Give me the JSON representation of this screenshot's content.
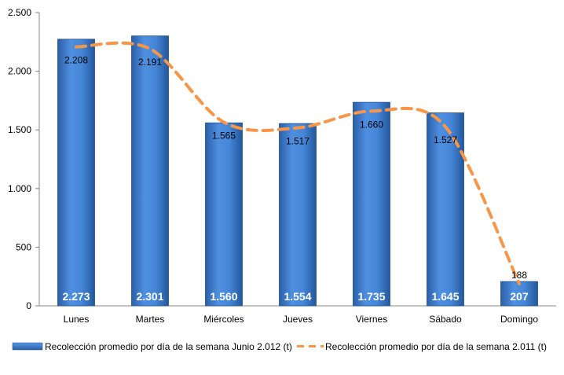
{
  "chart_data": {
    "type": "bar",
    "categories": [
      "Lunes",
      "Martes",
      "Miércoles",
      "Jueves",
      "Viernes",
      "Sábado",
      "Domingo"
    ],
    "ylim": [
      0,
      2500
    ],
    "yticks": [
      0,
      500,
      1000,
      1500,
      2000,
      2500
    ],
    "ytick_labels": [
      "0",
      "500",
      "1.000",
      "1.500",
      "2.000",
      "2.500"
    ],
    "grid": false,
    "legend_position": "bottom",
    "series": [
      {
        "name": "Recolección promedio por día de la semana Junio 2.012 (t)",
        "type": "bar",
        "color": "#3f7fd0",
        "values": [
          2273,
          2301,
          1560,
          1554,
          1735,
          1645,
          207
        ],
        "labels": [
          "2.273",
          "2.301",
          "1.560",
          "1.554",
          "1.735",
          "1.645",
          "207"
        ]
      },
      {
        "name": "Recolección promedio por día de la semana 2.011 (t)",
        "type": "line",
        "style": "dashed",
        "color": "#f79646",
        "values": [
          2208,
          2191,
          1565,
          1517,
          1660,
          1527,
          188
        ],
        "labels": [
          "2.208",
          "2.191",
          "1.565",
          "1.517",
          "1.660",
          "1.527",
          "188"
        ]
      }
    ]
  }
}
